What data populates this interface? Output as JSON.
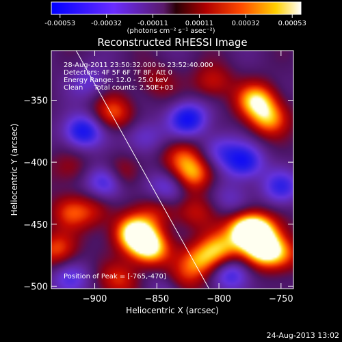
{
  "colorbar": {
    "ticks": [
      "-0.00053",
      "-0.00032",
      "-0.00011",
      "0.00011",
      "0.00032",
      "0.00053"
    ],
    "units": "(photons cm⁻² s⁻¹ asec⁻²)"
  },
  "chart_data": {
    "type": "heatmap",
    "title": "Reconstructed RHESSI Image",
    "xlabel": "Heliocentric X (arcsec)",
    "ylabel": "Heliocentric Y (arcsec)",
    "xlim": [
      -935,
      -740
    ],
    "ylim": [
      -502,
      -310
    ],
    "x_ticks": [
      -900,
      -850,
      -800,
      -750
    ],
    "y_ticks": [
      -350,
      -400,
      -450,
      -500
    ],
    "x_tick_labels": [
      "−900",
      "−850",
      "−800",
      "−750"
    ],
    "y_tick_labels": [
      "−350",
      "−400",
      "−450",
      "−500"
    ],
    "value_range": [
      -0.00053,
      0.00053
    ],
    "colormap": "blue-purple-red-orange-yellow-white",
    "limb_line": {
      "points": [
        [
          -915,
          -310
        ],
        [
          -808,
          -502
        ]
      ]
    },
    "annotations": [
      "28-Aug-2011 23:50:32.000 to 23:52:40.000",
      "Detectors: 4F 5F 6F 7F 8F, Att 0",
      "Energy Range: 12.0 - 25.0 keV",
      "Clean     Total counts: 2.50E+03"
    ],
    "peak_label": "Position of Peak = [-765,-470]",
    "peak_position": [
      -765,
      -470
    ],
    "blobs": [
      {
        "x": -770,
        "y": -350,
        "v": 0.9
      },
      {
        "x": -760,
        "y": -365,
        "v": 0.75
      },
      {
        "x": -885,
        "y": -360,
        "v": 0.6
      },
      {
        "x": -805,
        "y": -335,
        "v": 0.45
      },
      {
        "x": -850,
        "y": -335,
        "v": 0.3
      },
      {
        "x": -820,
        "y": -410,
        "v": 0.75
      },
      {
        "x": -830,
        "y": -395,
        "v": 0.55
      },
      {
        "x": -880,
        "y": -410,
        "v": 0.55
      },
      {
        "x": -920,
        "y": -405,
        "v": 0.3
      },
      {
        "x": -850,
        "y": -440,
        "v": 0.35
      },
      {
        "x": -870,
        "y": -455,
        "v": 0.6
      },
      {
        "x": -900,
        "y": -440,
        "v": 0.35
      },
      {
        "x": -920,
        "y": -440,
        "v": 0.5
      },
      {
        "x": -930,
        "y": -470,
        "v": 0.6
      },
      {
        "x": -855,
        "y": -470,
        "v": 0.95
      },
      {
        "x": -865,
        "y": -460,
        "v": 0.7
      },
      {
        "x": -770,
        "y": -455,
        "v": 1.0
      },
      {
        "x": -765,
        "y": -470,
        "v": 1.0
      },
      {
        "x": -780,
        "y": -455,
        "v": 0.8
      },
      {
        "x": -800,
        "y": -470,
        "v": 0.75
      },
      {
        "x": -815,
        "y": -480,
        "v": 0.7
      },
      {
        "x": -750,
        "y": -475,
        "v": 0.6
      },
      {
        "x": -820,
        "y": -440,
        "v": 0.4
      },
      {
        "x": -880,
        "y": -495,
        "v": 0.5
      },
      {
        "x": -830,
        "y": -495,
        "v": 0.45
      },
      {
        "x": -910,
        "y": -375,
        "v": -0.8
      },
      {
        "x": -825,
        "y": -365,
        "v": -0.8
      },
      {
        "x": -890,
        "y": -415,
        "v": -0.85
      },
      {
        "x": -780,
        "y": -400,
        "v": -0.75
      },
      {
        "x": -840,
        "y": -420,
        "v": -0.5
      },
      {
        "x": -800,
        "y": -390,
        "v": -0.45
      },
      {
        "x": -790,
        "y": -490,
        "v": -0.6
      },
      {
        "x": -920,
        "y": -495,
        "v": -0.45
      },
      {
        "x": -860,
        "y": -380,
        "v": -0.4
      },
      {
        "x": -750,
        "y": -420,
        "v": -0.55
      },
      {
        "x": -905,
        "y": -335,
        "v": -0.35
      },
      {
        "x": -840,
        "y": -500,
        "v": -0.35
      },
      {
        "x": -790,
        "y": -430,
        "v": -0.3
      }
    ]
  },
  "footer": {
    "timestamp": "24-Aug-2013 13:02"
  }
}
